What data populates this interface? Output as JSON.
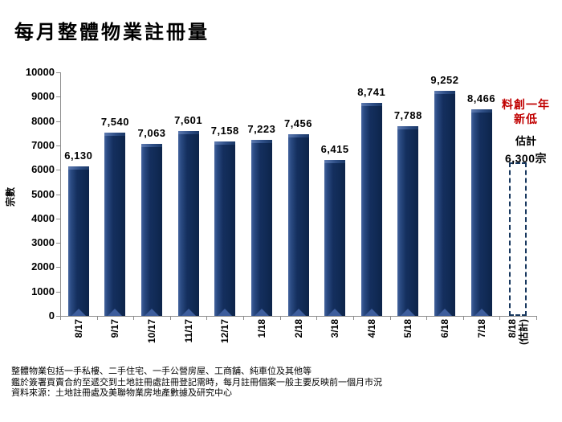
{
  "title": "每月整體物業註冊量",
  "chart_data": {
    "type": "bar",
    "title": "每月整體物業註冊量",
    "xlabel": "",
    "ylabel": "宗數",
    "ylim": [
      0,
      10000
    ],
    "ytick_step": 1000,
    "grid": false,
    "legend": "none",
    "categories": [
      "8/17",
      "9/17",
      "10/17",
      "11/17",
      "12/17",
      "1/18",
      "2/18",
      "3/18",
      "4/18",
      "5/18",
      "6/18",
      "7/18",
      "8/18\n(估計)"
    ],
    "values": [
      6130,
      7540,
      7063,
      7601,
      7158,
      7223,
      7456,
      6415,
      8741,
      7788,
      9252,
      8466,
      6300
    ],
    "estimated_flags": [
      false,
      false,
      false,
      false,
      false,
      false,
      false,
      false,
      false,
      false,
      false,
      false,
      true
    ],
    "bar_color": "#142F5E",
    "bar_highlight_color": "#3D5D9C",
    "estimated_bar_border_color": "#17375E"
  },
  "annotation": {
    "headline": "料創一年\n新低",
    "headline_color": "#C00000",
    "estimate_caption": "估計",
    "estimate_value": "6,300宗"
  },
  "footnotes": [
    "整體物業包括一手私樓、二手住宅、一手公營房屋、工商舖、純車位及其他等",
    "鑑於簽署買賣合約至遞交到土地註冊處註冊登記需時，每月註冊個案一般主要反映前一個月市況",
    "資料來源：土地註冊處及美聯物業房地產數據及研究中心"
  ]
}
